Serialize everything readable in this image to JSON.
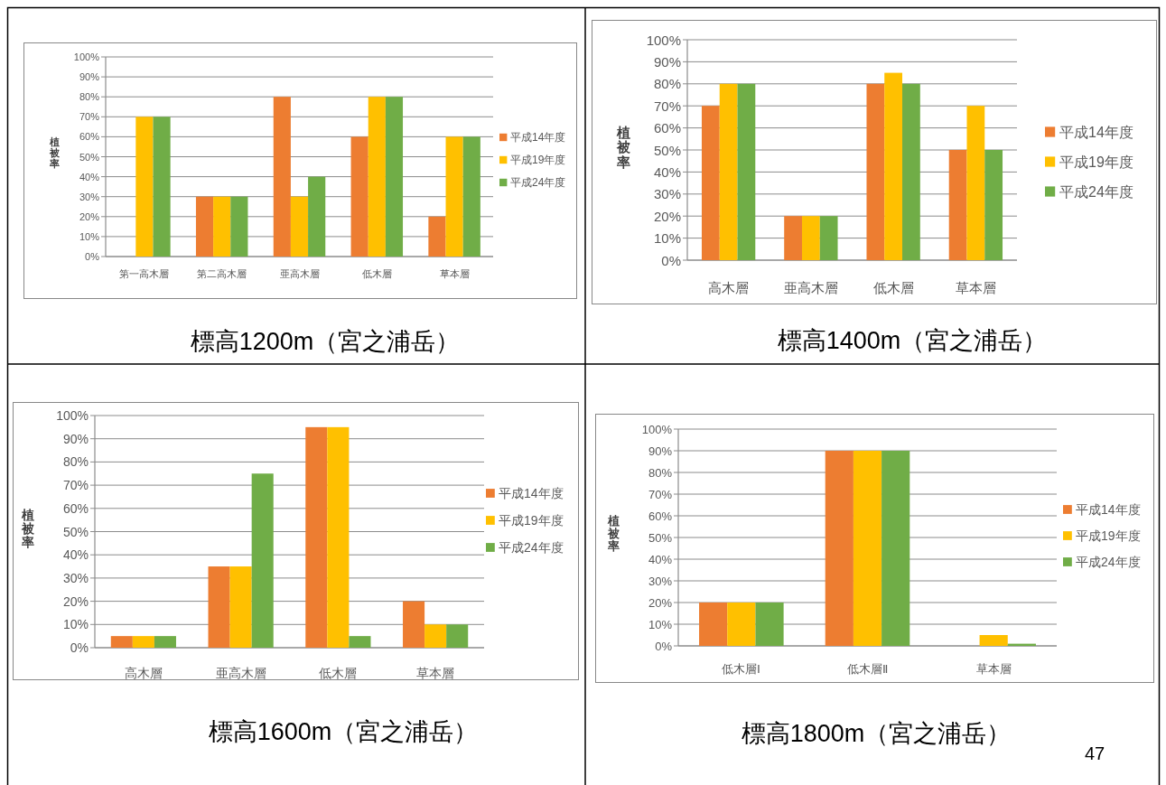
{
  "chart_data": [
    {
      "type": "bar",
      "title": "標高1200m（宮之浦岳）",
      "ylabel": "植被率",
      "categories": [
        "第一高木層",
        "第二高木層",
        "亜高木層",
        "低木層",
        "草本層"
      ],
      "series": [
        {
          "name": "平成14年度",
          "color": "#ed7d31",
          "values": [
            null,
            30,
            80,
            60,
            20
          ]
        },
        {
          "name": "平成19年度",
          "color": "#ffc000",
          "values": [
            70,
            30,
            30,
            80,
            60
          ]
        },
        {
          "name": "平成24年度",
          "color": "#70ad47",
          "values": [
            70,
            30,
            40,
            80,
            60
          ]
        }
      ],
      "ylim": [
        0,
        100
      ],
      "yticks": [
        {
          "value": 0,
          "label": "0%"
        },
        {
          "value": 10,
          "label": "10%"
        },
        {
          "value": 20,
          "label": "20%"
        },
        {
          "value": 30,
          "label": "30%"
        },
        {
          "value": 40,
          "label": "40%"
        },
        {
          "value": 50,
          "label": "50%"
        },
        {
          "value": 60,
          "label": "60%"
        },
        {
          "value": 70,
          "label": "70%"
        },
        {
          "value": 80,
          "label": "80%"
        },
        {
          "value": 90,
          "label": "90%"
        },
        {
          "value": 100,
          "label": "100%"
        }
      ],
      "grid": "y",
      "legend": "right"
    },
    {
      "type": "bar",
      "title": "標高1400m（宮之浦岳）",
      "ylabel": "植被率",
      "categories": [
        "高木層",
        "亜高木層",
        "低木層",
        "草本層"
      ],
      "series": [
        {
          "name": "平成14年度",
          "color": "#ed7d31",
          "values": [
            70,
            20,
            80,
            50
          ]
        },
        {
          "name": "平成19年度",
          "color": "#ffc000",
          "values": [
            80,
            20,
            85,
            70
          ]
        },
        {
          "name": "平成24年度",
          "color": "#70ad47",
          "values": [
            80,
            20,
            80,
            50
          ]
        }
      ],
      "ylim": [
        0,
        100
      ],
      "yticks": [
        {
          "value": 0,
          "label": "0%"
        },
        {
          "value": 10,
          "label": "10%"
        },
        {
          "value": 20,
          "label": "20%"
        },
        {
          "value": 30,
          "label": "30%"
        },
        {
          "value": 40,
          "label": "40%"
        },
        {
          "value": 50,
          "label": "50%"
        },
        {
          "value": 60,
          "label": "60%"
        },
        {
          "value": 70,
          "label": "70%"
        },
        {
          "value": 80,
          "label": "80%"
        },
        {
          "value": 90,
          "label": "90%"
        },
        {
          "value": 100,
          "label": "100%"
        }
      ],
      "grid": "y",
      "legend": "right"
    },
    {
      "type": "bar",
      "title": "標高1600m（宮之浦岳）",
      "ylabel": "植被率",
      "categories": [
        "高木層",
        "亜高木層",
        "低木層",
        "草本層"
      ],
      "series": [
        {
          "name": "平成14年度",
          "color": "#ed7d31",
          "values": [
            5,
            35,
            95,
            20
          ]
        },
        {
          "name": "平成19年度",
          "color": "#ffc000",
          "values": [
            5,
            35,
            95,
            10
          ]
        },
        {
          "name": "平成24年度",
          "color": "#70ad47",
          "values": [
            5,
            75,
            5,
            10
          ]
        }
      ],
      "ylim": [
        0,
        100
      ],
      "yticks": [
        {
          "value": 0,
          "label": "0%"
        },
        {
          "value": 10,
          "label": "10%"
        },
        {
          "value": 20,
          "label": "20%"
        },
        {
          "value": 30,
          "label": "30%"
        },
        {
          "value": 40,
          "label": "40%"
        },
        {
          "value": 50,
          "label": "50%"
        },
        {
          "value": 60,
          "label": "60%"
        },
        {
          "value": 70,
          "label": "70%"
        },
        {
          "value": 80,
          "label": "80%"
        },
        {
          "value": 90,
          "label": "90%"
        },
        {
          "value": 100,
          "label": "100%"
        }
      ],
      "grid": "y",
      "legend": "right"
    },
    {
      "type": "bar",
      "title": "標高1800m（宮之浦岳）",
      "ylabel": "植被率",
      "categories": [
        "低木層Ⅰ",
        "低木層Ⅱ",
        "草本層"
      ],
      "series": [
        {
          "name": "平成14年度",
          "color": "#ed7d31",
          "values": [
            20,
            90,
            null
          ]
        },
        {
          "name": "平成19年度",
          "color": "#ffc000",
          "values": [
            20,
            90,
            5
          ]
        },
        {
          "name": "平成24年度",
          "color": "#70ad47",
          "values": [
            20,
            90,
            1
          ]
        }
      ],
      "ylim": [
        0,
        100
      ],
      "yticks": [
        {
          "value": 0,
          "label": "0%"
        },
        {
          "value": 10,
          "label": "10%"
        },
        {
          "value": 20,
          "label": "20%"
        },
        {
          "value": 30,
          "label": "30%"
        },
        {
          "value": 40,
          "label": "40%"
        },
        {
          "value": 50,
          "label": "50%"
        },
        {
          "value": 60,
          "label": "60%"
        },
        {
          "value": 70,
          "label": "70%"
        },
        {
          "value": 80,
          "label": "80%"
        },
        {
          "value": 90,
          "label": "90%"
        },
        {
          "value": 100,
          "label": "100%"
        }
      ],
      "grid": "y",
      "legend": "right",
      "annotations": [
        "47"
      ]
    }
  ]
}
